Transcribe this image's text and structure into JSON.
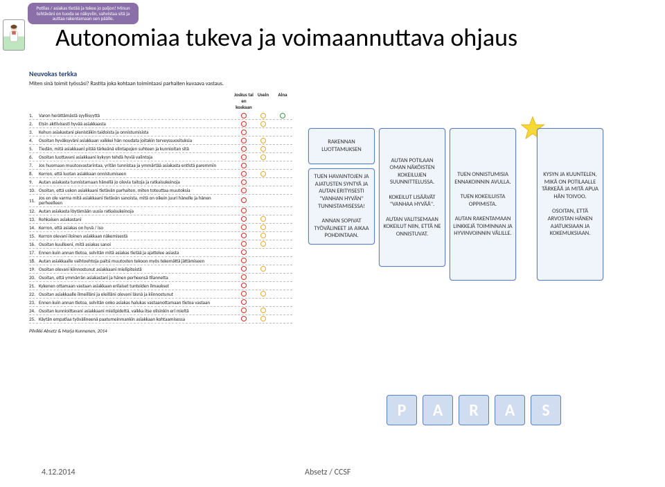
{
  "colors": {
    "purple_note_bg": "#8a6fa8",
    "card_border": "#5b7fbf",
    "card_bg": "#f0f4fb",
    "paras_bg": "#d0dcf0",
    "red": "#d92b1f",
    "amber": "#e8a92b",
    "green": "#3c9a3c",
    "star_fill": "#f6d836",
    "star_stroke": "#e0a800",
    "title_color": "#000000"
  },
  "top_note": "Potilas / asiakas tietää ja tekee jo paljon! Minun tehtäväni on tuoda se näkyviin, vahvistaa sitä ja auttaa rakentamaan sen päälle.",
  "main_title": "Autonomiaa tukeva ja voimaannuttava ohjaus",
  "questionnaire": {
    "title": "Neuvokas terkka",
    "instruction": "Miten sinä toimit työssäsi? Rastita joka kohtaan toimintaasi parhaiten kuvaava vastaus.",
    "headers": [
      "Joskus tai en koskaan",
      "Usein",
      "Aina"
    ],
    "credit": "Pilvikki Absetz & Marja Kunnanen, 2014",
    "items": [
      {
        "n": "1.",
        "t": "Varon herättämästä syyllisyyttä",
        "m": [
          1,
          1,
          1
        ]
      },
      {
        "n": "2.",
        "t": "Etsin aktiivisesti hyvää asiakkaasta",
        "m": [
          1,
          1,
          0
        ]
      },
      {
        "n": "3.",
        "t": "Kehun asiakastani pienistäkin taidoista ja onnistumisista",
        "m": [
          1,
          0,
          0
        ]
      },
      {
        "n": "4.",
        "t": "Osoitan hyväksyväni asiakkaan vaikkei hän noudata joitakin terveyssuosituksia",
        "m": [
          1,
          1,
          0
        ]
      },
      {
        "n": "5.",
        "t": "Tiedän, mitä asiakkaani pitää tärkeänä elintapojen suhteen ja kunnioitan sitä",
        "m": [
          1,
          1,
          0
        ]
      },
      {
        "n": "6.",
        "t": "Osoitan luottavani asiakkaani kykyyn tehdä hyviä valintoja",
        "m": [
          1,
          1,
          0
        ]
      },
      {
        "n": "7.",
        "t": "Jos huomaan muutosvastarintaa, yritän tunnistaa ja ymmärtää asiakasta entistä paremmin",
        "m": [
          1,
          0,
          0
        ]
      },
      {
        "n": "8.",
        "t": "Kerron, että luotan asiakkaan onnistumiseen",
        "m": [
          1,
          1,
          0
        ]
      },
      {
        "n": "9.",
        "t": "Autan asiakasta tunnistamaan hänellä jo olevia taitoja ja ratkaisukeinoja",
        "m": [
          1,
          0,
          0
        ]
      },
      {
        "n": "10.",
        "t": "Osoitan, että uskon asiakkaani tietävän parhaiten, miten toteuttaa muutoksia",
        "m": [
          1,
          0,
          0
        ]
      },
      {
        "n": "11.",
        "t": "Jos en ole varma mitä asiakkaani tietävän sanoista, mitä on oikein juuri hänelle ja hänen perheelleen",
        "m": [
          1,
          0,
          0
        ]
      },
      {
        "n": "12.",
        "t": "Autan asiakasta löytämään uusia ratkaisukeinoja",
        "m": [
          1,
          0,
          0
        ]
      },
      {
        "n": "13.",
        "t": "Rohkaisen asiakastani",
        "m": [
          1,
          1,
          0
        ]
      },
      {
        "n": "14.",
        "t": "Kerron, että asiakas on hyvä / iso",
        "m": [
          1,
          1,
          0
        ]
      },
      {
        "n": "15.",
        "t": "Kerron olevani iloinen asiakkaan näkemisestä",
        "m": [
          1,
          1,
          0
        ]
      },
      {
        "n": "16.",
        "t": "Osoitan kuulleeni, mitä asiakas sanoi",
        "m": [
          1,
          1,
          0
        ]
      },
      {
        "n": "17.",
        "t": "Ennen kuin annan tietoa, selvitän mitä asiakas tietää ja ajattelee asiasta",
        "m": [
          1,
          0,
          0
        ]
      },
      {
        "n": "18.",
        "t": "Autan asiakkaalle vaihtoehtoja paitsi muutosten tekoon myös tekemättä jättämiseen",
        "m": [
          1,
          0,
          0
        ]
      },
      {
        "n": "19.",
        "t": "Osoitan olevani kiinnostunut asiakkaani mielipiteistä",
        "m": [
          1,
          1,
          0
        ]
      },
      {
        "n": "20.",
        "t": "Osoitan, että ymmärrän asiakastani ja hänen perheensä tilannetta",
        "m": [
          1,
          0,
          0
        ]
      },
      {
        "n": "21.",
        "t": "Kykenen ottamaan vastaan asiakkaan erilaiset tunteiden ilmaukset",
        "m": [
          1,
          0,
          0
        ]
      },
      {
        "n": "22.",
        "t": "Osoitan asiakkaalle ilmeilläni ja eleilläni olevani läsnä ja kiinnostunut",
        "m": [
          1,
          1,
          0
        ]
      },
      {
        "n": "23.",
        "t": "Ennen kuin annan tietoa, selvitän onko asiakas halukas vastaanottamaan tietoa vastaan",
        "m": [
          1,
          0,
          0
        ]
      },
      {
        "n": "24.",
        "t": "Osoitan kunnioittavani asiakkaani mielipidettä, vaikka itse olisinkin eri mieltä",
        "m": [
          1,
          1,
          0
        ]
      },
      {
        "n": "25.",
        "t": "Käytän empatiaa työvälineenä paatumeinmankin asiakkaan kohtaamisessa",
        "m": [
          1,
          1,
          0
        ]
      }
    ]
  },
  "cards": {
    "c1_top": "RAKENNAN LUOTTAMUKSEN",
    "c1_bottom": "TUEN HAVAINTOJEN JA AJATUSTEN SYNTYÄ JA AUTAN ERITYISESTI \"VANHAN HYVÄN\" TUNNISTAMISESSA!\n\nANNAN SOPIVAT TYÖVÄLINEET JA AIKAA POHDINTAAN.",
    "c2": "AUTAN POTILAAN OMAN NÄKÖISTEN KOKEILUJEN SUUNNITTELUSSA.\n\nKOKEILUT LISÄÄVÄT \"VANHAA HYVÄÄ\".\n\nAUTAN VALITSEMAAN KOKEILUT NIIN, ETTÄ NE ONNISTUVAT.",
    "c3": "TUEN ONNISTUMISIA ENNAKOINNIN AVULLA.\n\nTUEN KOKEILUISTA OPPIMISTA.\n\nAUTAN RAKENTAMAAN LINKKEJÄ TOIMINNAN JA HYVINVOINNIN VÄLILLE.",
    "c4": "KYSYN JA KUUNTELEN, MIKÄ ON POTILAALLE TÄRKEÄÄ JA MITÄ APUA HÄN TOIVOO.\n\nOSOITAN, ETTÄ ARVOSTAN HÄNEN AJATUKSIAAN JA KOKEMUKSIAAN."
  },
  "paras": [
    "P",
    "A",
    "R",
    "A",
    "S"
  ],
  "footer": {
    "date": "4.12.2014",
    "source": "Absetz / CCSF"
  }
}
